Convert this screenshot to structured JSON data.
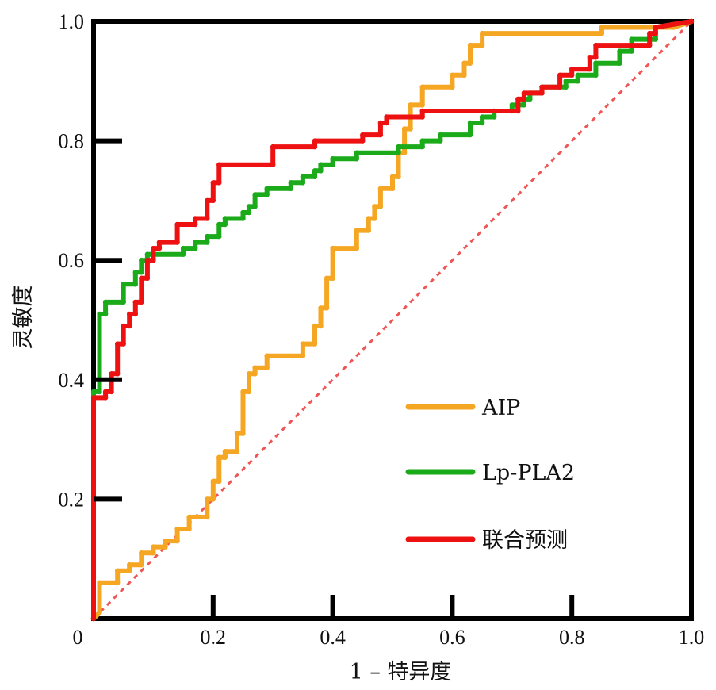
{
  "chart_data": {
    "type": "line",
    "title": "",
    "xlabel": "1 – 特异度",
    "ylabel": "灵敏度",
    "xlim": [
      0,
      1
    ],
    "ylim": [
      0,
      1
    ],
    "x_ticks": [
      "0",
      "0.2",
      "0.4",
      "0.6",
      "0.8",
      "1.0"
    ],
    "y_ticks": [
      "0.2",
      "0.4",
      "0.6",
      "0.8",
      "1.0"
    ],
    "grid": false,
    "legend_position": "bottom-right",
    "reference_line": {
      "from": [
        0,
        0
      ],
      "to": [
        1,
        1
      ],
      "style": "dashed",
      "color": "#ee5555"
    },
    "series": [
      {
        "name": "AIP",
        "color": "#f5a623",
        "points": [
          [
            0,
            0
          ],
          [
            0.01,
            0.01
          ],
          [
            0.01,
            0.06
          ],
          [
            0.04,
            0.06
          ],
          [
            0.04,
            0.08
          ],
          [
            0.06,
            0.08
          ],
          [
            0.06,
            0.09
          ],
          [
            0.08,
            0.09
          ],
          [
            0.08,
            0.11
          ],
          [
            0.1,
            0.11
          ],
          [
            0.1,
            0.12
          ],
          [
            0.12,
            0.12
          ],
          [
            0.12,
            0.13
          ],
          [
            0.14,
            0.13
          ],
          [
            0.14,
            0.15
          ],
          [
            0.16,
            0.15
          ],
          [
            0.16,
            0.17
          ],
          [
            0.19,
            0.17
          ],
          [
            0.19,
            0.2
          ],
          [
            0.2,
            0.2
          ],
          [
            0.2,
            0.23
          ],
          [
            0.21,
            0.23
          ],
          [
            0.21,
            0.27
          ],
          [
            0.22,
            0.27
          ],
          [
            0.22,
            0.28
          ],
          [
            0.24,
            0.28
          ],
          [
            0.24,
            0.31
          ],
          [
            0.25,
            0.31
          ],
          [
            0.25,
            0.38
          ],
          [
            0.26,
            0.38
          ],
          [
            0.26,
            0.41
          ],
          [
            0.27,
            0.41
          ],
          [
            0.27,
            0.42
          ],
          [
            0.29,
            0.42
          ],
          [
            0.29,
            0.44
          ],
          [
            0.35,
            0.44
          ],
          [
            0.35,
            0.46
          ],
          [
            0.37,
            0.46
          ],
          [
            0.37,
            0.49
          ],
          [
            0.38,
            0.49
          ],
          [
            0.38,
            0.52
          ],
          [
            0.39,
            0.52
          ],
          [
            0.39,
            0.57
          ],
          [
            0.4,
            0.57
          ],
          [
            0.4,
            0.62
          ],
          [
            0.44,
            0.62
          ],
          [
            0.44,
            0.65
          ],
          [
            0.46,
            0.65
          ],
          [
            0.46,
            0.67
          ],
          [
            0.47,
            0.67
          ],
          [
            0.47,
            0.69
          ],
          [
            0.48,
            0.69
          ],
          [
            0.48,
            0.72
          ],
          [
            0.5,
            0.72
          ],
          [
            0.5,
            0.74
          ],
          [
            0.51,
            0.74
          ],
          [
            0.51,
            0.78
          ],
          [
            0.52,
            0.78
          ],
          [
            0.52,
            0.82
          ],
          [
            0.53,
            0.82
          ],
          [
            0.53,
            0.86
          ],
          [
            0.55,
            0.86
          ],
          [
            0.55,
            0.89
          ],
          [
            0.6,
            0.89
          ],
          [
            0.6,
            0.91
          ],
          [
            0.62,
            0.91
          ],
          [
            0.62,
            0.93
          ],
          [
            0.63,
            0.93
          ],
          [
            0.63,
            0.96
          ],
          [
            0.65,
            0.96
          ],
          [
            0.65,
            0.98
          ],
          [
            0.85,
            0.98
          ],
          [
            0.85,
            0.99
          ],
          [
            0.97,
            0.99
          ],
          [
            1,
            1
          ]
        ]
      },
      {
        "name": "Lp-PLA2",
        "color": "#1aaa1a",
        "points": [
          [
            0,
            0
          ],
          [
            0,
            0.38
          ],
          [
            0.01,
            0.38
          ],
          [
            0.01,
            0.51
          ],
          [
            0.02,
            0.51
          ],
          [
            0.02,
            0.53
          ],
          [
            0.05,
            0.53
          ],
          [
            0.05,
            0.56
          ],
          [
            0.07,
            0.56
          ],
          [
            0.07,
            0.58
          ],
          [
            0.08,
            0.58
          ],
          [
            0.08,
            0.6
          ],
          [
            0.09,
            0.6
          ],
          [
            0.09,
            0.61
          ],
          [
            0.15,
            0.61
          ],
          [
            0.15,
            0.62
          ],
          [
            0.17,
            0.62
          ],
          [
            0.17,
            0.63
          ],
          [
            0.19,
            0.63
          ],
          [
            0.19,
            0.64
          ],
          [
            0.21,
            0.64
          ],
          [
            0.21,
            0.66
          ],
          [
            0.22,
            0.66
          ],
          [
            0.22,
            0.67
          ],
          [
            0.25,
            0.67
          ],
          [
            0.25,
            0.68
          ],
          [
            0.26,
            0.68
          ],
          [
            0.26,
            0.69
          ],
          [
            0.27,
            0.69
          ],
          [
            0.27,
            0.71
          ],
          [
            0.29,
            0.71
          ],
          [
            0.29,
            0.72
          ],
          [
            0.33,
            0.72
          ],
          [
            0.33,
            0.73
          ],
          [
            0.35,
            0.73
          ],
          [
            0.35,
            0.74
          ],
          [
            0.37,
            0.74
          ],
          [
            0.37,
            0.75
          ],
          [
            0.38,
            0.75
          ],
          [
            0.38,
            0.76
          ],
          [
            0.4,
            0.76
          ],
          [
            0.4,
            0.77
          ],
          [
            0.44,
            0.77
          ],
          [
            0.44,
            0.78
          ],
          [
            0.51,
            0.78
          ],
          [
            0.51,
            0.79
          ],
          [
            0.55,
            0.79
          ],
          [
            0.55,
            0.8
          ],
          [
            0.58,
            0.8
          ],
          [
            0.58,
            0.81
          ],
          [
            0.63,
            0.81
          ],
          [
            0.63,
            0.83
          ],
          [
            0.65,
            0.83
          ],
          [
            0.65,
            0.84
          ],
          [
            0.67,
            0.84
          ],
          [
            0.67,
            0.85
          ],
          [
            0.7,
            0.85
          ],
          [
            0.7,
            0.86
          ],
          [
            0.72,
            0.86
          ],
          [
            0.72,
            0.87
          ],
          [
            0.73,
            0.87
          ],
          [
            0.73,
            0.88
          ],
          [
            0.75,
            0.88
          ],
          [
            0.75,
            0.89
          ],
          [
            0.79,
            0.89
          ],
          [
            0.79,
            0.9
          ],
          [
            0.81,
            0.9
          ],
          [
            0.81,
            0.91
          ],
          [
            0.84,
            0.91
          ],
          [
            0.84,
            0.93
          ],
          [
            0.88,
            0.93
          ],
          [
            0.88,
            0.95
          ],
          [
            0.9,
            0.95
          ],
          [
            0.9,
            0.97
          ],
          [
            0.94,
            0.97
          ],
          [
            0.94,
            0.99
          ],
          [
            1,
            1
          ]
        ]
      },
      {
        "name": "联合预测",
        "color": "#ee1111",
        "points": [
          [
            0,
            0
          ],
          [
            0,
            0.37
          ],
          [
            0.02,
            0.37
          ],
          [
            0.02,
            0.38
          ],
          [
            0.03,
            0.38
          ],
          [
            0.03,
            0.41
          ],
          [
            0.04,
            0.41
          ],
          [
            0.04,
            0.46
          ],
          [
            0.05,
            0.46
          ],
          [
            0.05,
            0.49
          ],
          [
            0.06,
            0.49
          ],
          [
            0.06,
            0.51
          ],
          [
            0.07,
            0.51
          ],
          [
            0.07,
            0.53
          ],
          [
            0.08,
            0.53
          ],
          [
            0.08,
            0.57
          ],
          [
            0.09,
            0.57
          ],
          [
            0.09,
            0.6
          ],
          [
            0.1,
            0.6
          ],
          [
            0.1,
            0.62
          ],
          [
            0.11,
            0.62
          ],
          [
            0.11,
            0.63
          ],
          [
            0.14,
            0.63
          ],
          [
            0.14,
            0.66
          ],
          [
            0.17,
            0.66
          ],
          [
            0.17,
            0.67
          ],
          [
            0.19,
            0.67
          ],
          [
            0.19,
            0.7
          ],
          [
            0.2,
            0.7
          ],
          [
            0.2,
            0.73
          ],
          [
            0.21,
            0.73
          ],
          [
            0.21,
            0.76
          ],
          [
            0.3,
            0.76
          ],
          [
            0.3,
            0.79
          ],
          [
            0.37,
            0.79
          ],
          [
            0.37,
            0.8
          ],
          [
            0.45,
            0.8
          ],
          [
            0.45,
            0.81
          ],
          [
            0.48,
            0.81
          ],
          [
            0.48,
            0.83
          ],
          [
            0.49,
            0.83
          ],
          [
            0.49,
            0.84
          ],
          [
            0.55,
            0.84
          ],
          [
            0.55,
            0.85
          ],
          [
            0.71,
            0.85
          ],
          [
            0.71,
            0.87
          ],
          [
            0.72,
            0.87
          ],
          [
            0.72,
            0.88
          ],
          [
            0.75,
            0.88
          ],
          [
            0.75,
            0.89
          ],
          [
            0.78,
            0.89
          ],
          [
            0.78,
            0.91
          ],
          [
            0.8,
            0.91
          ],
          [
            0.8,
            0.92
          ],
          [
            0.83,
            0.92
          ],
          [
            0.83,
            0.94
          ],
          [
            0.84,
            0.94
          ],
          [
            0.84,
            0.96
          ],
          [
            0.93,
            0.96
          ],
          [
            0.93,
            0.98
          ],
          [
            0.94,
            0.98
          ],
          [
            0.94,
            0.99
          ],
          [
            1,
            1
          ]
        ]
      }
    ]
  }
}
